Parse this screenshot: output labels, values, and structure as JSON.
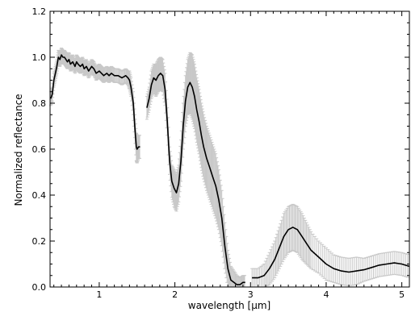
{
  "chart_data": {
    "type": "line",
    "title": "",
    "xlabel": "wavelength [µm]",
    "ylabel": "Normalized reflectance",
    "xlim": [
      0.35,
      5.1
    ],
    "ylim": [
      0.0,
      1.2
    ],
    "xticks": [
      1,
      2,
      3,
      4,
      5
    ],
    "yticks": [
      0.0,
      0.2,
      0.4,
      0.6,
      0.8,
      1.0,
      1.2
    ],
    "grid": false,
    "legend": "none",
    "series_color": "#000000",
    "error_color": "#c8c8c8",
    "segments": [
      {
        "x": [
          0.36,
          0.38,
          0.4,
          0.42,
          0.44,
          0.46,
          0.48,
          0.5,
          0.52,
          0.54,
          0.56,
          0.58,
          0.6,
          0.62,
          0.65,
          0.68,
          0.7,
          0.72,
          0.75,
          0.78,
          0.8,
          0.83,
          0.86,
          0.9,
          0.93,
          0.96,
          1.0,
          1.03,
          1.06,
          1.1,
          1.13,
          1.16,
          1.2,
          1.25,
          1.3,
          1.35,
          1.38,
          1.4,
          1.42,
          1.45,
          1.47,
          1.49,
          1.5,
          1.52,
          1.54
        ],
        "y": [
          0.82,
          0.84,
          0.9,
          0.93,
          0.96,
          1.0,
          0.99,
          1.01,
          1.0,
          1.0,
          0.99,
          0.98,
          0.99,
          0.97,
          0.98,
          0.96,
          0.98,
          0.97,
          0.96,
          0.97,
          0.95,
          0.96,
          0.94,
          0.96,
          0.95,
          0.93,
          0.94,
          0.93,
          0.92,
          0.93,
          0.92,
          0.93,
          0.92,
          0.92,
          0.91,
          0.92,
          0.91,
          0.9,
          0.87,
          0.8,
          0.7,
          0.61,
          0.6,
          0.61,
          0.61
        ],
        "err": [
          0.03,
          0.03,
          0.03,
          0.03,
          0.03,
          0.03,
          0.03,
          0.03,
          0.03,
          0.03,
          0.03,
          0.03,
          0.03,
          0.03,
          0.03,
          0.03,
          0.03,
          0.03,
          0.03,
          0.03,
          0.03,
          0.03,
          0.03,
          0.03,
          0.03,
          0.03,
          0.03,
          0.03,
          0.03,
          0.03,
          0.03,
          0.03,
          0.03,
          0.03,
          0.03,
          0.03,
          0.03,
          0.04,
          0.04,
          0.05,
          0.05,
          0.06,
          0.06,
          0.05,
          0.05
        ]
      },
      {
        "x": [
          1.63,
          1.66,
          1.69,
          1.72,
          1.75,
          1.78,
          1.81,
          1.84,
          1.87,
          1.9,
          1.93,
          1.96,
          1.99,
          2.02,
          2.05,
          2.08,
          2.11,
          2.14,
          2.17,
          2.2,
          2.23,
          2.26,
          2.29,
          2.32,
          2.35,
          2.38,
          2.42,
          2.46,
          2.5,
          2.54,
          2.58,
          2.62,
          2.66,
          2.7,
          2.74,
          2.78,
          2.82,
          2.86,
          2.9,
          2.93
        ],
        "y": [
          0.78,
          0.82,
          0.88,
          0.91,
          0.9,
          0.92,
          0.93,
          0.92,
          0.86,
          0.72,
          0.55,
          0.46,
          0.43,
          0.41,
          0.45,
          0.55,
          0.7,
          0.81,
          0.87,
          0.89,
          0.87,
          0.83,
          0.77,
          0.72,
          0.66,
          0.61,
          0.56,
          0.52,
          0.48,
          0.44,
          0.38,
          0.3,
          0.18,
          0.08,
          0.03,
          0.02,
          0.01,
          0.01,
          0.02,
          0.02
        ],
        "err": [
          0.05,
          0.05,
          0.06,
          0.06,
          0.07,
          0.07,
          0.07,
          0.07,
          0.07,
          0.06,
          0.06,
          0.07,
          0.08,
          0.08,
          0.08,
          0.09,
          0.1,
          0.11,
          0.12,
          0.13,
          0.14,
          0.14,
          0.14,
          0.14,
          0.14,
          0.14,
          0.14,
          0.14,
          0.14,
          0.14,
          0.13,
          0.12,
          0.1,
          0.08,
          0.06,
          0.05,
          0.04,
          0.03,
          0.03,
          0.03
        ]
      },
      {
        "x": [
          3.02,
          3.1,
          3.18,
          3.25,
          3.32,
          3.38,
          3.44,
          3.5,
          3.56,
          3.62,
          3.68,
          3.74,
          3.8,
          3.9,
          4.0,
          4.1,
          4.2,
          4.3,
          4.4,
          4.5,
          4.6,
          4.7,
          4.8,
          4.9,
          5.0,
          5.1
        ],
        "y": [
          0.04,
          0.04,
          0.05,
          0.08,
          0.12,
          0.17,
          0.22,
          0.25,
          0.26,
          0.25,
          0.22,
          0.19,
          0.16,
          0.13,
          0.1,
          0.08,
          0.07,
          0.065,
          0.07,
          0.075,
          0.085,
          0.095,
          0.1,
          0.105,
          0.1,
          0.09
        ],
        "err": [
          0.04,
          0.04,
          0.05,
          0.07,
          0.08,
          0.09,
          0.1,
          0.1,
          0.1,
          0.1,
          0.1,
          0.09,
          0.08,
          0.07,
          0.07,
          0.06,
          0.06,
          0.06,
          0.06,
          0.05,
          0.05,
          0.05,
          0.05,
          0.05,
          0.05,
          0.05
        ]
      }
    ]
  }
}
